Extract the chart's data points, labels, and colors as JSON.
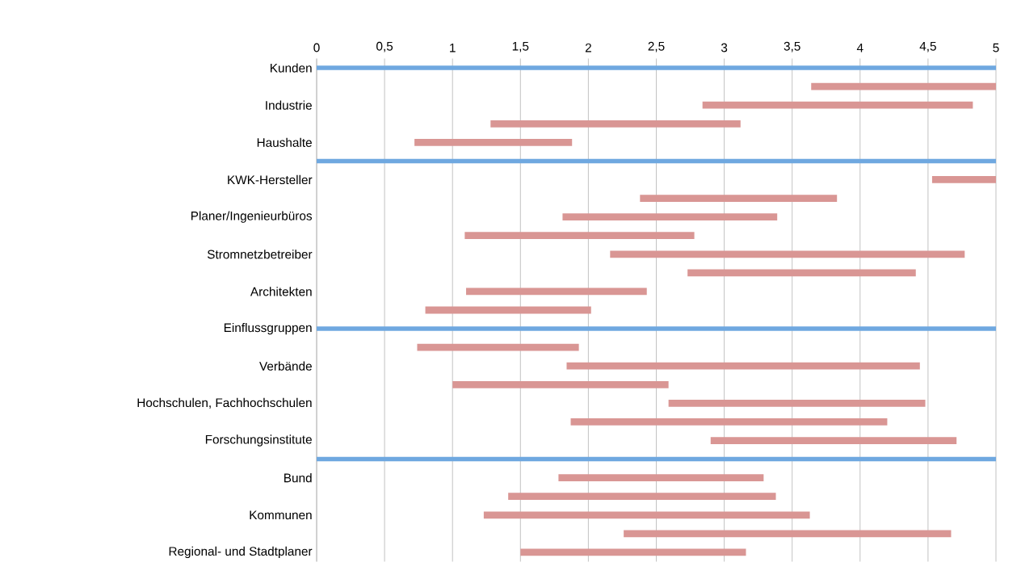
{
  "chart_data": {
    "type": "bar",
    "orientation": "horizontal",
    "categories": [
      "Kunden",
      null,
      "Industrie",
      null,
      "Haushalte",
      null,
      "KWK-Hersteller",
      null,
      "Planer/Ingenieurbüros",
      null,
      "Stromnetzbetreiber",
      null,
      "Architekten",
      null,
      "Einflussgruppen",
      null,
      "Verbände",
      null,
      "Hochschulen, Fachhochschulen",
      null,
      "Forschungsinstitute",
      null,
      "Bund",
      null,
      "Kommunen",
      null,
      "Regional- und Stadtplaner"
    ],
    "series": [
      {
        "color": "#6fa8e0",
        "base": [
          0,
          null,
          null,
          null,
          null,
          0,
          null,
          null,
          null,
          null,
          null,
          null,
          null,
          null,
          0,
          null,
          null,
          null,
          null,
          null,
          null,
          0,
          null,
          null,
          null,
          null,
          null
        ],
        "values": [
          5,
          null,
          null,
          null,
          null,
          5,
          null,
          null,
          null,
          null,
          null,
          null,
          null,
          null,
          5,
          null,
          null,
          null,
          null,
          null,
          null,
          5,
          null,
          null,
          null,
          null,
          null
        ]
      },
      {
        "color": "#d99694",
        "base": [
          null,
          3.64,
          2.84,
          1.28,
          0.72,
          null,
          4.53,
          2.38,
          1.81,
          1.09,
          2.16,
          2.73,
          1.1,
          0.8,
          null,
          0.74,
          1.84,
          1.0,
          2.59,
          1.87,
          2.9,
          null,
          1.78,
          1.41,
          1.23,
          2.26,
          1.5
        ],
        "values": [
          null,
          1.36,
          1.99,
          1.84,
          1.16,
          null,
          0.47,
          1.45,
          1.58,
          1.69,
          2.61,
          1.68,
          1.33,
          1.22,
          null,
          1.19,
          2.6,
          1.59,
          1.89,
          2.33,
          1.81,
          null,
          1.51,
          1.97,
          2.4,
          2.41,
          1.66
        ]
      }
    ],
    "xlim": [
      0,
      5
    ],
    "xticks": [
      0,
      {
        "value": 0.5,
        "label": "0,5"
      },
      1,
      {
        "value": 1.5,
        "label": "1,5"
      },
      2,
      {
        "value": 2.5,
        "label": "2,5"
      },
      3,
      {
        "value": 3.5,
        "label": "3,5"
      },
      4,
      {
        "value": 4.5,
        "label": "4,5"
      },
      5
    ],
    "grid": "x"
  }
}
